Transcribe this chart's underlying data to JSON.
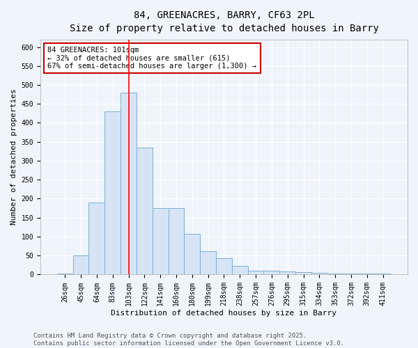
{
  "title_line1": "84, GREENACRES, BARRY, CF63 2PL",
  "title_line2": "Size of property relative to detached houses in Barry",
  "xlabel": "Distribution of detached houses by size in Barry",
  "ylabel": "Number of detached properties",
  "categories": [
    "26sqm",
    "45sqm",
    "64sqm",
    "83sqm",
    "103sqm",
    "122sqm",
    "141sqm",
    "160sqm",
    "180sqm",
    "199sqm",
    "218sqm",
    "238sqm",
    "257sqm",
    "276sqm",
    "295sqm",
    "315sqm",
    "334sqm",
    "353sqm",
    "372sqm",
    "392sqm",
    "411sqm"
  ],
  "values": [
    3,
    50,
    190,
    430,
    480,
    335,
    175,
    175,
    108,
    62,
    43,
    22,
    10,
    10,
    8,
    6,
    5,
    3,
    2,
    2,
    3
  ],
  "bar_color": "#d6e4f5",
  "bar_edge_color": "#7bafd4",
  "redline_index": 4,
  "annotation_text": "84 GREENACRES: 101sqm\n← 32% of detached houses are smaller (615)\n67% of semi-detached houses are larger (1,300) →",
  "annotation_box_color": "#ffffff",
  "annotation_box_edge": "#cc0000",
  "ylim": [
    0,
    620
  ],
  "yticks": [
    0,
    50,
    100,
    150,
    200,
    250,
    300,
    350,
    400,
    450,
    500,
    550,
    600
  ],
  "footer": "Contains HM Land Registry data © Crown copyright and database right 2025.\nContains public sector information licensed under the Open Government Licence v3.0.",
  "bg_color": "#f0f4fb",
  "plot_bg_color": "#f0f4fb",
  "grid_color": "#ffffff",
  "title_fontsize": 10,
  "axis_label_fontsize": 8,
  "tick_fontsize": 7,
  "annotation_fontsize": 7.5,
  "footer_fontsize": 6.5
}
